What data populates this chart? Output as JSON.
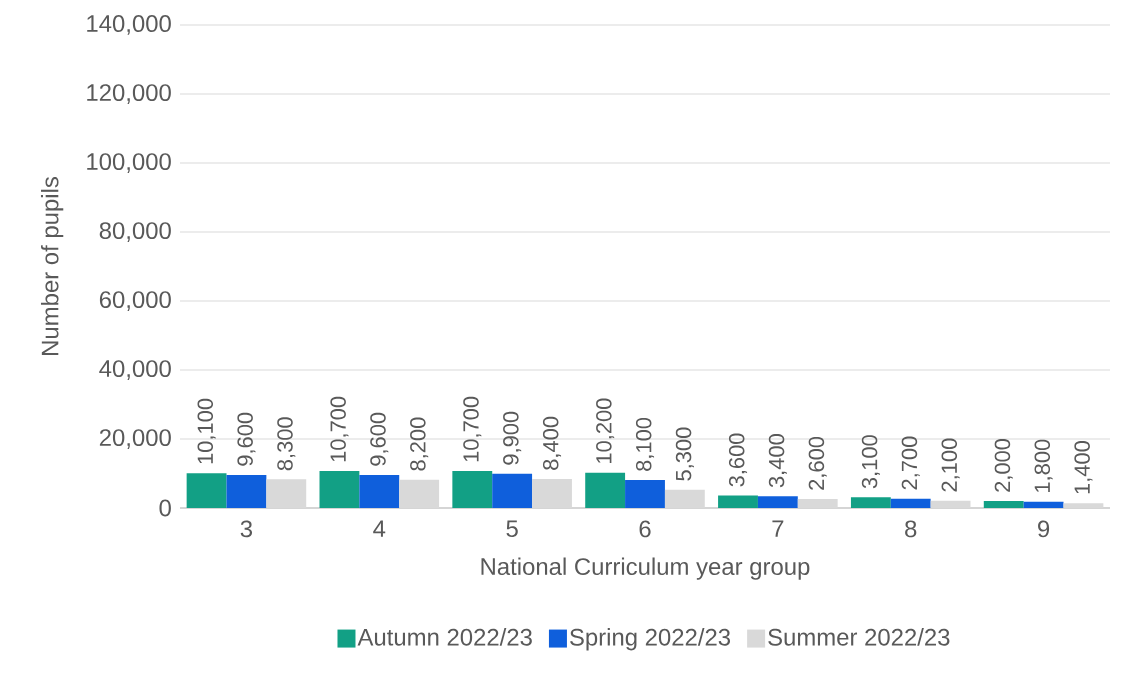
{
  "chart_data": {
    "type": "bar",
    "xlabel": "National Curriculum year group",
    "ylabel": "Number of pupils",
    "categories": [
      "3",
      "4",
      "5",
      "6",
      "7",
      "8",
      "9"
    ],
    "series": [
      {
        "name": "Autumn 2022/23",
        "color": "#12a085",
        "values": [
          10100,
          10700,
          10700,
          10200,
          3600,
          3100,
          2000
        ],
        "value_labels": [
          "10,100",
          "10,700",
          "10,700",
          "10,200",
          "3,600",
          "3,100",
          "2,000"
        ]
      },
      {
        "name": "Spring 2022/23",
        "color": "#0f5fdc",
        "values": [
          9600,
          9600,
          9900,
          8100,
          3400,
          2700,
          1800
        ],
        "value_labels": [
          "9,600",
          "9,600",
          "9,900",
          "8,100",
          "3,400",
          "2,700",
          "1,800"
        ]
      },
      {
        "name": "Summer 2022/23",
        "color": "#d9d9d9",
        "values": [
          8300,
          8200,
          8400,
          5300,
          2600,
          2100,
          1400
        ],
        "value_labels": [
          "8,300",
          "8,200",
          "8,400",
          "5,300",
          "2,600",
          "2,100",
          "1,400"
        ]
      }
    ],
    "ylim": [
      0,
      140000
    ],
    "yticks": [
      {
        "value": 0,
        "label": "0"
      },
      {
        "value": 20000,
        "label": "20,000"
      },
      {
        "value": 40000,
        "label": "40,000"
      },
      {
        "value": 60000,
        "label": "60,000"
      },
      {
        "value": 80000,
        "label": "80,000"
      },
      {
        "value": 100000,
        "label": "100,000"
      },
      {
        "value": 120000,
        "label": "120,000"
      },
      {
        "value": 140000,
        "label": "140,000"
      }
    ],
    "grid": "y",
    "legend": "bottom"
  }
}
